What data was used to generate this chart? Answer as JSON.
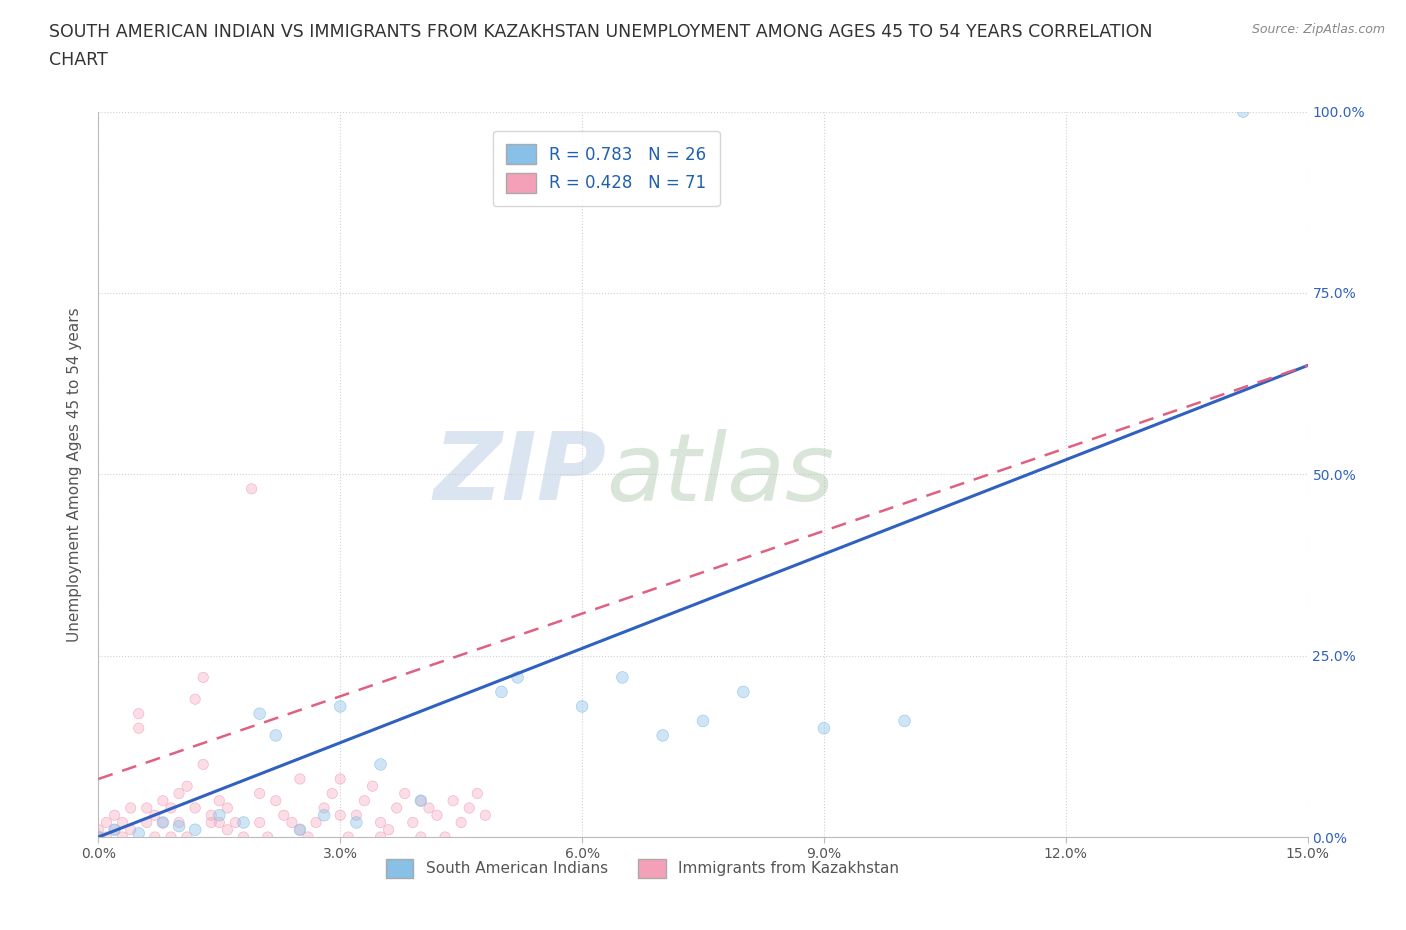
{
  "title_line1": "SOUTH AMERICAN INDIAN VS IMMIGRANTS FROM KAZAKHSTAN UNEMPLOYMENT AMONG AGES 45 TO 54 YEARS CORRELATION",
  "title_line2": "CHART",
  "source": "Source: ZipAtlas.com",
  "ylabel": "Unemployment Among Ages 45 to 54 years",
  "xlim": [
    0.0,
    0.15
  ],
  "ylim": [
    0.0,
    1.0
  ],
  "xticks": [
    0.0,
    0.03,
    0.06,
    0.09,
    0.12,
    0.15
  ],
  "xtick_labels": [
    "0.0%",
    "3.0%",
    "6.0%",
    "9.0%",
    "12.0%",
    "15.0%"
  ],
  "yticks_right": [
    0.0,
    0.25,
    0.5,
    0.75,
    1.0
  ],
  "ytick_labels_right": [
    "0.0%",
    "25.0%",
    "50.0%",
    "75.0%",
    "100.0%"
  ],
  "blue_color": "#88c0e8",
  "pink_color": "#f4a0b8",
  "blue_line_color": "#3060c0",
  "pink_line_color": "#e06080",
  "R_blue": 0.783,
  "N_blue": 26,
  "R_pink": 0.428,
  "N_pink": 71,
  "legend_label_blue": "South American Indians",
  "legend_label_pink": "Immigrants from Kazakhstan",
  "watermark_zip": "ZIP",
  "watermark_atlas": "atlas",
  "background_color": "#ffffff",
  "grid_color": "#cccccc",
  "title_fontsize": 12.5,
  "axis_label_fontsize": 11,
  "tick_fontsize": 10,
  "blue_scatter_x": [
    0.0,
    0.002,
    0.005,
    0.008,
    0.01,
    0.012,
    0.015,
    0.018,
    0.02,
    0.022,
    0.025,
    0.028,
    0.03,
    0.032,
    0.035,
    0.04,
    0.05,
    0.052,
    0.06,
    0.065,
    0.07,
    0.075,
    0.08,
    0.09,
    0.1,
    0.142
  ],
  "blue_scatter_y": [
    0.0,
    0.01,
    0.005,
    0.02,
    0.015,
    0.01,
    0.03,
    0.02,
    0.17,
    0.14,
    0.01,
    0.03,
    0.18,
    0.02,
    0.1,
    0.05,
    0.2,
    0.22,
    0.18,
    0.22,
    0.14,
    0.16,
    0.2,
    0.15,
    0.16,
    1.0
  ],
  "pink_scatter_x": [
    0.0,
    0.0,
    0.001,
    0.001,
    0.002,
    0.002,
    0.003,
    0.003,
    0.004,
    0.004,
    0.005,
    0.005,
    0.006,
    0.006,
    0.007,
    0.007,
    0.008,
    0.008,
    0.009,
    0.009,
    0.01,
    0.01,
    0.011,
    0.011,
    0.012,
    0.012,
    0.013,
    0.013,
    0.014,
    0.014,
    0.015,
    0.015,
    0.016,
    0.016,
    0.017,
    0.018,
    0.019,
    0.02,
    0.02,
    0.021,
    0.022,
    0.023,
    0.024,
    0.025,
    0.025,
    0.026,
    0.027,
    0.028,
    0.029,
    0.03,
    0.03,
    0.031,
    0.032,
    0.033,
    0.034,
    0.035,
    0.035,
    0.036,
    0.037,
    0.038,
    0.039,
    0.04,
    0.04,
    0.041,
    0.042,
    0.043,
    0.044,
    0.045,
    0.046,
    0.047,
    0.048
  ],
  "pink_scatter_y": [
    0.0,
    0.01,
    0.02,
    0.0,
    0.01,
    0.03,
    0.02,
    0.0,
    0.04,
    0.01,
    0.15,
    0.17,
    0.02,
    0.04,
    0.0,
    0.03,
    0.05,
    0.02,
    0.0,
    0.04,
    0.02,
    0.06,
    0.0,
    0.07,
    0.04,
    0.19,
    0.1,
    0.22,
    0.02,
    0.03,
    0.05,
    0.02,
    0.01,
    0.04,
    0.02,
    0.0,
    0.48,
    0.06,
    0.02,
    0.0,
    0.05,
    0.03,
    0.02,
    0.08,
    0.01,
    0.0,
    0.02,
    0.04,
    0.06,
    0.08,
    0.03,
    0.0,
    0.03,
    0.05,
    0.07,
    0.0,
    0.02,
    0.01,
    0.04,
    0.06,
    0.02,
    0.05,
    0.0,
    0.04,
    0.03,
    0.0,
    0.05,
    0.02,
    0.04,
    0.06,
    0.03
  ],
  "blue_line_x": [
    0.0,
    0.15
  ],
  "blue_line_y": [
    0.0,
    0.65
  ],
  "pink_line_x": [
    0.0,
    0.15
  ],
  "pink_line_y": [
    0.08,
    0.65
  ]
}
